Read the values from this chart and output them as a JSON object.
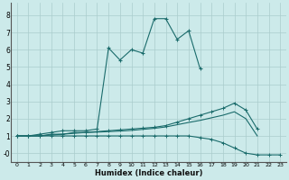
{
  "xlabel": "Humidex (Indice chaleur)",
  "background_color": "#cceaea",
  "grid_color": "#aacccc",
  "line_color": "#1a6b6b",
  "x_values": [
    0,
    1,
    2,
    3,
    4,
    5,
    6,
    7,
    8,
    9,
    10,
    11,
    12,
    13,
    14,
    15,
    16,
    17,
    18,
    19,
    20,
    21,
    22,
    23
  ],
  "series_peak": [
    1.0,
    1.0,
    1.1,
    1.2,
    1.3,
    1.3,
    1.3,
    1.4,
    6.1,
    5.4,
    6.0,
    5.8,
    7.8,
    7.8,
    6.6,
    7.1,
    4.9,
    null,
    null,
    null,
    null,
    null,
    null,
    null
  ],
  "series_upper": [
    1.0,
    1.0,
    1.0,
    1.1,
    1.1,
    1.2,
    1.2,
    1.25,
    1.3,
    1.35,
    1.4,
    1.45,
    1.5,
    1.6,
    1.8,
    2.0,
    2.2,
    2.4,
    2.6,
    2.9,
    2.5,
    1.4,
    null,
    null
  ],
  "series_mid": [
    1.0,
    1.0,
    1.0,
    1.05,
    1.1,
    1.15,
    1.2,
    1.22,
    1.25,
    1.28,
    1.32,
    1.38,
    1.44,
    1.52,
    1.65,
    1.78,
    1.9,
    2.05,
    2.2,
    2.4,
    2.0,
    1.0,
    null,
    null
  ],
  "series_bot": [
    1.0,
    1.0,
    1.0,
    1.0,
    1.0,
    1.0,
    1.0,
    1.0,
    1.0,
    1.0,
    1.0,
    1.0,
    1.0,
    1.0,
    1.0,
    1.0,
    0.9,
    0.8,
    0.6,
    0.3,
    0.0,
    -0.1,
    -0.1,
    -0.1
  ],
  "ylim": [
    -0.5,
    8.7
  ],
  "xlim": [
    -0.5,
    23.5
  ],
  "yticks": [
    0,
    1,
    2,
    3,
    4,
    5,
    6,
    7,
    8
  ],
  "ytick_labels": [
    "-0",
    "1",
    "2",
    "3",
    "4",
    "5",
    "6",
    "7",
    "8"
  ]
}
